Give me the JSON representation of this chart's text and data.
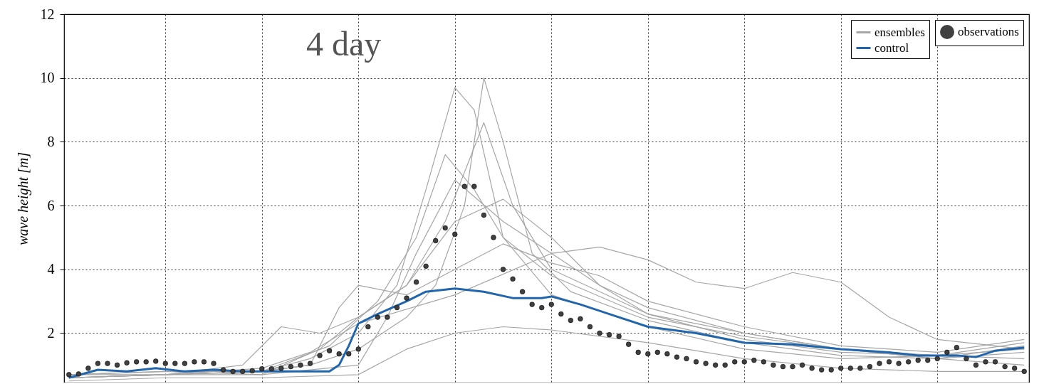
{
  "chart_data": {
    "type": "line",
    "title": "4 day",
    "ylabel": "wave height [m]",
    "categories": [
      null,
      null,
      null,
      null,
      null,
      null,
      null,
      null,
      null,
      null,
      null,
      null,
      null,
      null,
      null,
      null,
      null,
      null,
      null,
      null,
      null,
      null,
      null,
      null,
      null,
      null,
      null,
      null,
      null,
      null,
      null,
      null,
      null,
      null,
      null,
      null,
      null,
      null,
      null,
      null,
      null,
      null,
      null,
      null,
      null,
      null,
      null,
      null,
      null,
      null,
      null,
      null,
      null,
      null,
      null,
      null,
      null,
      null,
      null,
      null,
      null,
      null,
      null,
      null,
      null,
      null,
      null,
      null,
      null,
      null,
      null,
      null,
      null,
      null,
      null,
      null,
      null,
      null,
      null,
      null,
      null,
      null,
      null,
      null,
      null,
      null,
      null,
      null,
      null,
      null,
      null,
      null,
      null,
      null,
      null,
      null,
      null,
      null,
      null,
      null
    ],
    "ylim": [
      0.45,
      12
    ],
    "yticks": [
      2,
      4,
      6,
      8,
      10,
      12
    ],
    "grid": true,
    "legend": "top right",
    "tick_labels": "y",
    "series": [
      {
        "name": "ensembles",
        "color": "#a6a6a6",
        "values": [
          0.7,
          null,
          null,
          null,
          null,
          null,
          null,
          null,
          null,
          null,
          0.8,
          null,
          null,
          null,
          null,
          null,
          null,
          null,
          null,
          null,
          0.8,
          null,
          null,
          null,
          null,
          1.0,
          null,
          null,
          null,
          null,
          1.5,
          null,
          null,
          null,
          null,
          2.5,
          null,
          null,
          3.5,
          null,
          null,
          6,
          null,
          10,
          null,
          8,
          null,
          null,
          4.5,
          null,
          null,
          null,
          3.3,
          null,
          null,
          null,
          null,
          null,
          null,
          null,
          2.4,
          null,
          null,
          null,
          null,
          null,
          null,
          null,
          null,
          null,
          1.7,
          null,
          null,
          null,
          null,
          null,
          null,
          null,
          null,
          null,
          1.3,
          null,
          null,
          null,
          null,
          null,
          null,
          null,
          null,
          null,
          1.2,
          null,
          null,
          null,
          null,
          null,
          null,
          null,
          null,
          1.4
        ]
      },
      {
        "color": "#a6a6a6",
        "values": [
          0.6,
          null,
          null,
          null,
          null,
          null,
          null,
          null,
          null,
          null,
          0.7,
          null,
          null,
          null,
          null,
          null,
          null,
          null,
          null,
          null,
          0.8,
          null,
          null,
          null,
          null,
          1.2,
          null,
          null,
          null,
          null,
          2.0,
          null,
          null,
          null,
          3.5,
          null,
          null,
          6.5,
          null,
          null,
          9.7,
          null,
          9.0,
          null,
          null,
          5.0,
          null,
          null,
          null,
          null,
          3.2,
          null,
          null,
          null,
          null,
          null,
          null,
          null,
          null,
          null,
          2.2,
          null,
          null,
          null,
          null,
          null,
          null,
          null,
          null,
          null,
          1.5,
          null,
          null,
          null,
          null,
          null,
          null,
          null,
          null,
          null,
          1.2,
          null,
          null,
          null,
          null,
          null,
          null,
          null,
          null,
          null,
          1.3,
          null,
          null,
          null,
          null,
          null,
          null,
          null,
          null,
          1.5
        ]
      },
      {
        "color": "#a6a6a6",
        "values": [
          0.7,
          null,
          null,
          null,
          null,
          null,
          null,
          null,
          null,
          null,
          0.8,
          null,
          null,
          null,
          null,
          null,
          null,
          null,
          null,
          null,
          0.7,
          null,
          null,
          null,
          null,
          null,
          1.5,
          null,
          null,
          null,
          2.5,
          null,
          null,
          null,
          null,
          3.5,
          null,
          null,
          null,
          5.5,
          null,
          null,
          null,
          8.6,
          null,
          null,
          6.0,
          null,
          null,
          null,
          4.0,
          null,
          null,
          null,
          null,
          null,
          null,
          null,
          null,
          null,
          2.6,
          null,
          null,
          null,
          null,
          null,
          null,
          null,
          null,
          null,
          1.8,
          null,
          null,
          null,
          null,
          null,
          null,
          null,
          null,
          null,
          1.4,
          null,
          null,
          null,
          null,
          null,
          null,
          null,
          null,
          null,
          1.3,
          null,
          null,
          null,
          null,
          null,
          null,
          null,
          null,
          1.2
        ]
      },
      {
        "color": "#a6a6a6",
        "values": [
          0.7,
          null,
          null,
          null,
          null,
          null,
          null,
          null,
          null,
          null,
          0.7,
          null,
          null,
          null,
          null,
          null,
          null,
          null,
          null,
          null,
          0.8,
          null,
          null,
          null,
          null,
          null,
          null,
          1.6,
          null,
          null,
          null,
          null,
          3.0,
          null,
          null,
          null,
          5.0,
          null,
          null,
          7.6,
          null,
          null,
          6.5,
          null,
          null,
          5.0,
          null,
          null,
          null,
          null,
          3.8,
          null,
          null,
          null,
          null,
          null,
          null,
          null,
          null,
          null,
          2.5,
          null,
          null,
          null,
          null,
          null,
          null,
          null,
          null,
          null,
          1.9,
          null,
          null,
          null,
          null,
          null,
          null,
          null,
          null,
          null,
          1.5,
          null,
          null,
          null,
          null,
          null,
          null,
          null,
          null,
          null,
          1.2,
          null,
          null,
          null,
          null,
          null,
          null,
          null,
          null,
          1.6
        ]
      },
      {
        "color": "#a6a6a6",
        "values": [
          0.6,
          null,
          null,
          null,
          null,
          null,
          null,
          null,
          null,
          null,
          0.7,
          null,
          null,
          null,
          null,
          null,
          null,
          null,
          null,
          null,
          0.9,
          null,
          null,
          null,
          null,
          1.4,
          null,
          null,
          null,
          null,
          2.3,
          null,
          null,
          null,
          null,
          null,
          null,
          null,
          null,
          null,
          3.2,
          null,
          null,
          null,
          null,
          null,
          null,
          null,
          null,
          null,
          4.5,
          null,
          null,
          null,
          null,
          4.7,
          null,
          null,
          null,
          null,
          4.3,
          null,
          null,
          null,
          null,
          3.6,
          null,
          null,
          null,
          null,
          3.4,
          null,
          null,
          null,
          null,
          3.9,
          null,
          null,
          null,
          null,
          3.6,
          null,
          null,
          null,
          null,
          2.5,
          null,
          null,
          null,
          null,
          1.8,
          null,
          null,
          null,
          null,
          null,
          null,
          null,
          null,
          1.5
        ]
      },
      {
        "color": "#a6a6a6",
        "values": [
          0.5,
          null,
          null,
          null,
          null,
          null,
          null,
          null,
          null,
          null,
          0.6,
          null,
          null,
          null,
          null,
          null,
          null,
          null,
          null,
          null,
          0.6,
          null,
          null,
          null,
          null,
          null,
          null,
          null,
          null,
          null,
          0.7,
          null,
          null,
          null,
          null,
          1.5,
          null,
          null,
          null,
          null,
          2.0,
          null,
          null,
          null,
          null,
          2.2,
          null,
          null,
          null,
          null,
          2.1,
          null,
          null,
          null,
          null,
          null,
          null,
          null,
          null,
          null,
          1.7,
          null,
          null,
          null,
          null,
          null,
          null,
          null,
          null,
          null,
          1.2,
          null,
          null,
          null,
          null,
          null,
          null,
          null,
          null,
          null,
          0.9,
          null,
          null,
          null,
          null,
          null,
          null,
          null,
          null,
          null,
          0.8,
          null,
          null,
          null,
          null,
          null,
          null,
          null,
          null,
          0.8
        ]
      },
      {
        "color": "#a6a6a6",
        "values": [
          0.6,
          null,
          null,
          null,
          null,
          null,
          null,
          null,
          null,
          null,
          0.7,
          null,
          null,
          null,
          null,
          null,
          null,
          null,
          1.0,
          null,
          null,
          null,
          2.2,
          null,
          null,
          null,
          2.0,
          null,
          null,
          null,
          2.5,
          null,
          null,
          null,
          null,
          3.5,
          null,
          null,
          null,
          null,
          5.5,
          null,
          null,
          null,
          null,
          6.2,
          null,
          null,
          null,
          null,
          5.0,
          null,
          null,
          null,
          null,
          3.5,
          null,
          null,
          null,
          null,
          2.6,
          null,
          null,
          null,
          null,
          null,
          null,
          null,
          null,
          null,
          2.0,
          null,
          null,
          null,
          null,
          null,
          null,
          null,
          null,
          null,
          1.5,
          null,
          null,
          null,
          null,
          null,
          null,
          null,
          null,
          null,
          1.3,
          null,
          null,
          null,
          null,
          null,
          null,
          null,
          null,
          1.7
        ]
      },
      {
        "color": "#a6a6a6",
        "values": [
          0.6,
          null,
          null,
          null,
          null,
          null,
          null,
          null,
          null,
          null,
          0.7,
          null,
          null,
          null,
          null,
          null,
          null,
          null,
          null,
          null,
          0.8,
          null,
          null,
          null,
          null,
          1.0,
          null,
          null,
          2.8,
          null,
          3.5,
          null,
          null,
          null,
          null,
          3.2,
          null,
          null,
          null,
          null,
          4.0,
          null,
          null,
          null,
          null,
          4.8,
          null,
          null,
          null,
          null,
          4.2,
          null,
          null,
          null,
          null,
          3.8,
          null,
          null,
          null,
          null,
          3.0,
          null,
          null,
          null,
          null,
          null,
          null,
          null,
          null,
          null,
          2.2,
          null,
          null,
          null,
          null,
          null,
          null,
          null,
          null,
          null,
          1.6,
          null,
          null,
          null,
          null,
          null,
          null,
          null,
          null,
          null,
          1.4,
          null,
          null,
          null,
          null,
          null,
          null,
          null,
          null,
          1.8
        ]
      },
      {
        "color": "#a6a6a6",
        "values": [
          0.6,
          null,
          null,
          null,
          null,
          null,
          null,
          null,
          null,
          null,
          0.7,
          null,
          null,
          null,
          null,
          null,
          null,
          null,
          null,
          null,
          0.7,
          null,
          null,
          null,
          null,
          null,
          null,
          null,
          null,
          null,
          1.0,
          null,
          null,
          2.5,
          null,
          null,
          4.5,
          null,
          null,
          null,
          6.8,
          null,
          null,
          null,
          null,
          5.5,
          null,
          null,
          null,
          null,
          4.5,
          null,
          null,
          null,
          null,
          3.5,
          null,
          null,
          null,
          null,
          2.8,
          null,
          null,
          null,
          null,
          null,
          null,
          null,
          null,
          null,
          2.0,
          null,
          null,
          null,
          null,
          null,
          null,
          null,
          null,
          null,
          1.5,
          null,
          null,
          null,
          null,
          null,
          null,
          null,
          null,
          null,
          1.2,
          null,
          null,
          null,
          null,
          null,
          null,
          null,
          null,
          1.0
        ]
      },
      {
        "name": "control",
        "color": "#2166ac",
        "values": [
          0.6,
          null,
          null,
          0.85,
          null,
          null,
          0.8,
          null,
          null,
          0.9,
          null,
          null,
          0.8,
          null,
          null,
          0.85,
          null,
          null,
          0.8,
          null,
          null,
          0.8,
          null,
          null,
          0.8,
          null,
          null,
          0.8,
          1.0,
          1.6,
          2.3,
          null,
          2.6,
          null,
          null,
          3.0,
          null,
          3.3,
          null,
          null,
          3.4,
          null,
          null,
          3.3,
          null,
          null,
          3.1,
          null,
          null,
          3.1,
          3.15,
          null,
          null,
          2.9,
          null,
          null,
          2.6,
          null,
          null,
          null,
          2.2,
          null,
          null,
          null,
          null,
          2.0,
          null,
          null,
          null,
          null,
          1.7,
          null,
          null,
          null,
          null,
          1.65,
          null,
          null,
          null,
          null,
          1.5,
          null,
          null,
          null,
          null,
          1.4,
          null,
          null,
          1.3,
          null,
          null,
          null,
          1.3,
          null,
          1.25,
          null,
          1.45,
          null,
          null,
          1.55
        ]
      },
      {
        "name": "observations",
        "type": "scatter",
        "color": "#404040",
        "marker": "circle",
        "values": [
          0.7,
          0.72,
          0.9,
          1.05,
          1.05,
          1.0,
          1.07,
          1.1,
          1.1,
          1.12,
          1.05,
          1.05,
          1.05,
          1.1,
          1.1,
          1.05,
          0.85,
          0.8,
          0.8,
          0.82,
          0.88,
          0.88,
          0.9,
          0.95,
          1.0,
          1.05,
          1.3,
          1.45,
          1.35,
          1.35,
          1.5,
          2.2,
          2.5,
          2.5,
          2.8,
          3.1,
          3.6,
          4.1,
          4.9,
          5.3,
          5.1,
          6.6,
          6.6,
          5.7,
          5.0,
          4.0,
          3.7,
          3.3,
          2.9,
          2.8,
          2.9,
          2.6,
          2.4,
          2.45,
          2.2,
          2.0,
          1.95,
          1.9,
          1.65,
          1.4,
          1.35,
          1.4,
          1.35,
          1.25,
          1.2,
          1.1,
          1.05,
          1.0,
          1.0,
          1.1,
          1.1,
          1.15,
          1.1,
          1.0,
          0.95,
          0.95,
          1.0,
          0.9,
          0.85,
          0.85,
          0.9,
          0.9,
          0.9,
          0.95,
          1.05,
          1.1,
          1.05,
          1.1,
          1.15,
          1.15,
          1.2,
          1.4,
          1.55,
          1.2,
          1.0,
          1.1,
          1.1,
          0.95,
          0.9,
          0.8
        ]
      }
    ]
  }
}
